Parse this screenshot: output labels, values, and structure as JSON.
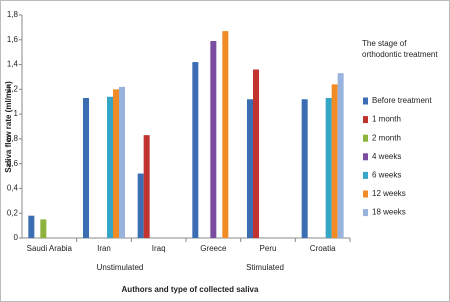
{
  "chart_data": {
    "type": "bar",
    "y_label": "Saliva flow rate  (ml/min)",
    "x_label": "Authors and type of collected saliva",
    "legend_title": "The stage of orthodontic treatment",
    "group_labels": [
      "Unstimulated",
      "Stimulated"
    ],
    "categories": [
      "Saudi Arabia",
      "Iran",
      "Iraq",
      "Greece",
      "Peru",
      "Croatia"
    ],
    "series": [
      {
        "name": "Before treatment",
        "color": "#3b6db3",
        "values": [
          0.18,
          1.13,
          0.52,
          1.42,
          1.12,
          1.12
        ]
      },
      {
        "name": "1 month",
        "color": "#c0332f",
        "values": [
          null,
          null,
          0.83,
          null,
          1.36,
          null
        ]
      },
      {
        "name": "2 month",
        "color": "#8db33d",
        "values": [
          0.15,
          null,
          null,
          null,
          null,
          null
        ]
      },
      {
        "name": "4 weeks",
        "color": "#7a4d9e",
        "values": [
          null,
          null,
          null,
          1.59,
          null,
          null
        ]
      },
      {
        "name": "6 weeks",
        "color": "#35a6c6",
        "values": [
          null,
          1.14,
          null,
          null,
          null,
          1.13
        ]
      },
      {
        "name": "12 weeks",
        "color": "#f08b25",
        "values": [
          null,
          1.2,
          null,
          1.67,
          null,
          1.24
        ]
      },
      {
        "name": "18 weeks",
        "color": "#98b4de",
        "values": [
          null,
          1.22,
          null,
          null,
          null,
          1.33
        ]
      }
    ],
    "ylim": [
      0,
      1.8
    ],
    "yticks": [
      0,
      {
        "value": 0.2,
        "label": "0,2"
      },
      {
        "value": 0.4,
        "label": "0,4"
      },
      {
        "value": 0.6,
        "label": "0,6"
      },
      {
        "value": 0.8,
        "label": "0,8"
      },
      1,
      {
        "value": 1.2,
        "label": "1,2"
      },
      {
        "value": 1.4,
        "label": "1,4"
      },
      {
        "value": 1.6,
        "label": "1,6"
      },
      {
        "value": 1.8,
        "label": "1,8"
      }
    ],
    "grid": false
  }
}
